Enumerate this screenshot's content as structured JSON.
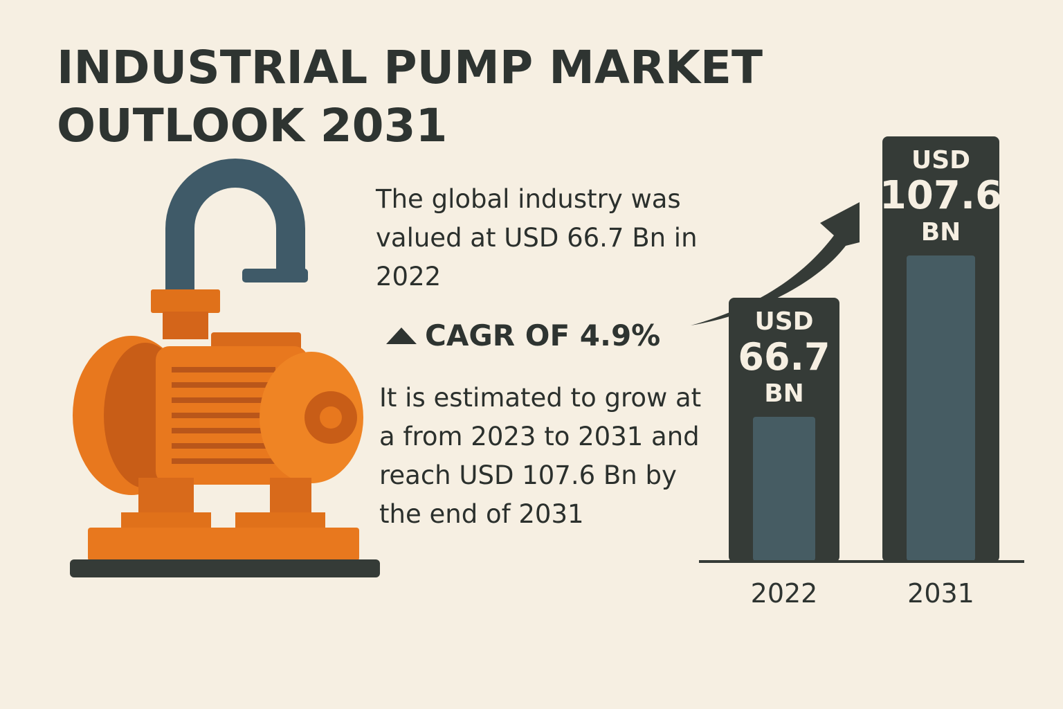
{
  "title": {
    "line1": "INDUSTRIAL PUMP MARKET",
    "line2": "OUTLOOK 2031"
  },
  "text": {
    "valued": "The global industry was valued at USD 66.7 Bn in 2022",
    "cagr": "CAGR OF 4.9%",
    "growth": "It is estimated to grow at a from 2023 to 2031 and reach USD 107.6 Bn by the end of 2031"
  },
  "icons": {
    "pump": "industrial-pump-icon",
    "arrow": "trend-up-arrow-icon",
    "cagr": "triangle-up-icon"
  },
  "colors": {
    "background": "#f6efe2",
    "bar_outer": "#353b37",
    "bar_inner": "#465c63",
    "pump_orange": "#e8781e",
    "pipe": "#3f5a68"
  },
  "chart_data": {
    "type": "bar",
    "categories": [
      "2022",
      "2031"
    ],
    "values": [
      66.7,
      107.6
    ],
    "bar_labels": [
      {
        "unit": "USD",
        "value": "66.7",
        "suffix": "BN"
      },
      {
        "unit": "USD",
        "value": "107.6",
        "suffix": "BN"
      }
    ],
    "title": "",
    "xlabel": "",
    "ylabel": "",
    "grid": false
  }
}
